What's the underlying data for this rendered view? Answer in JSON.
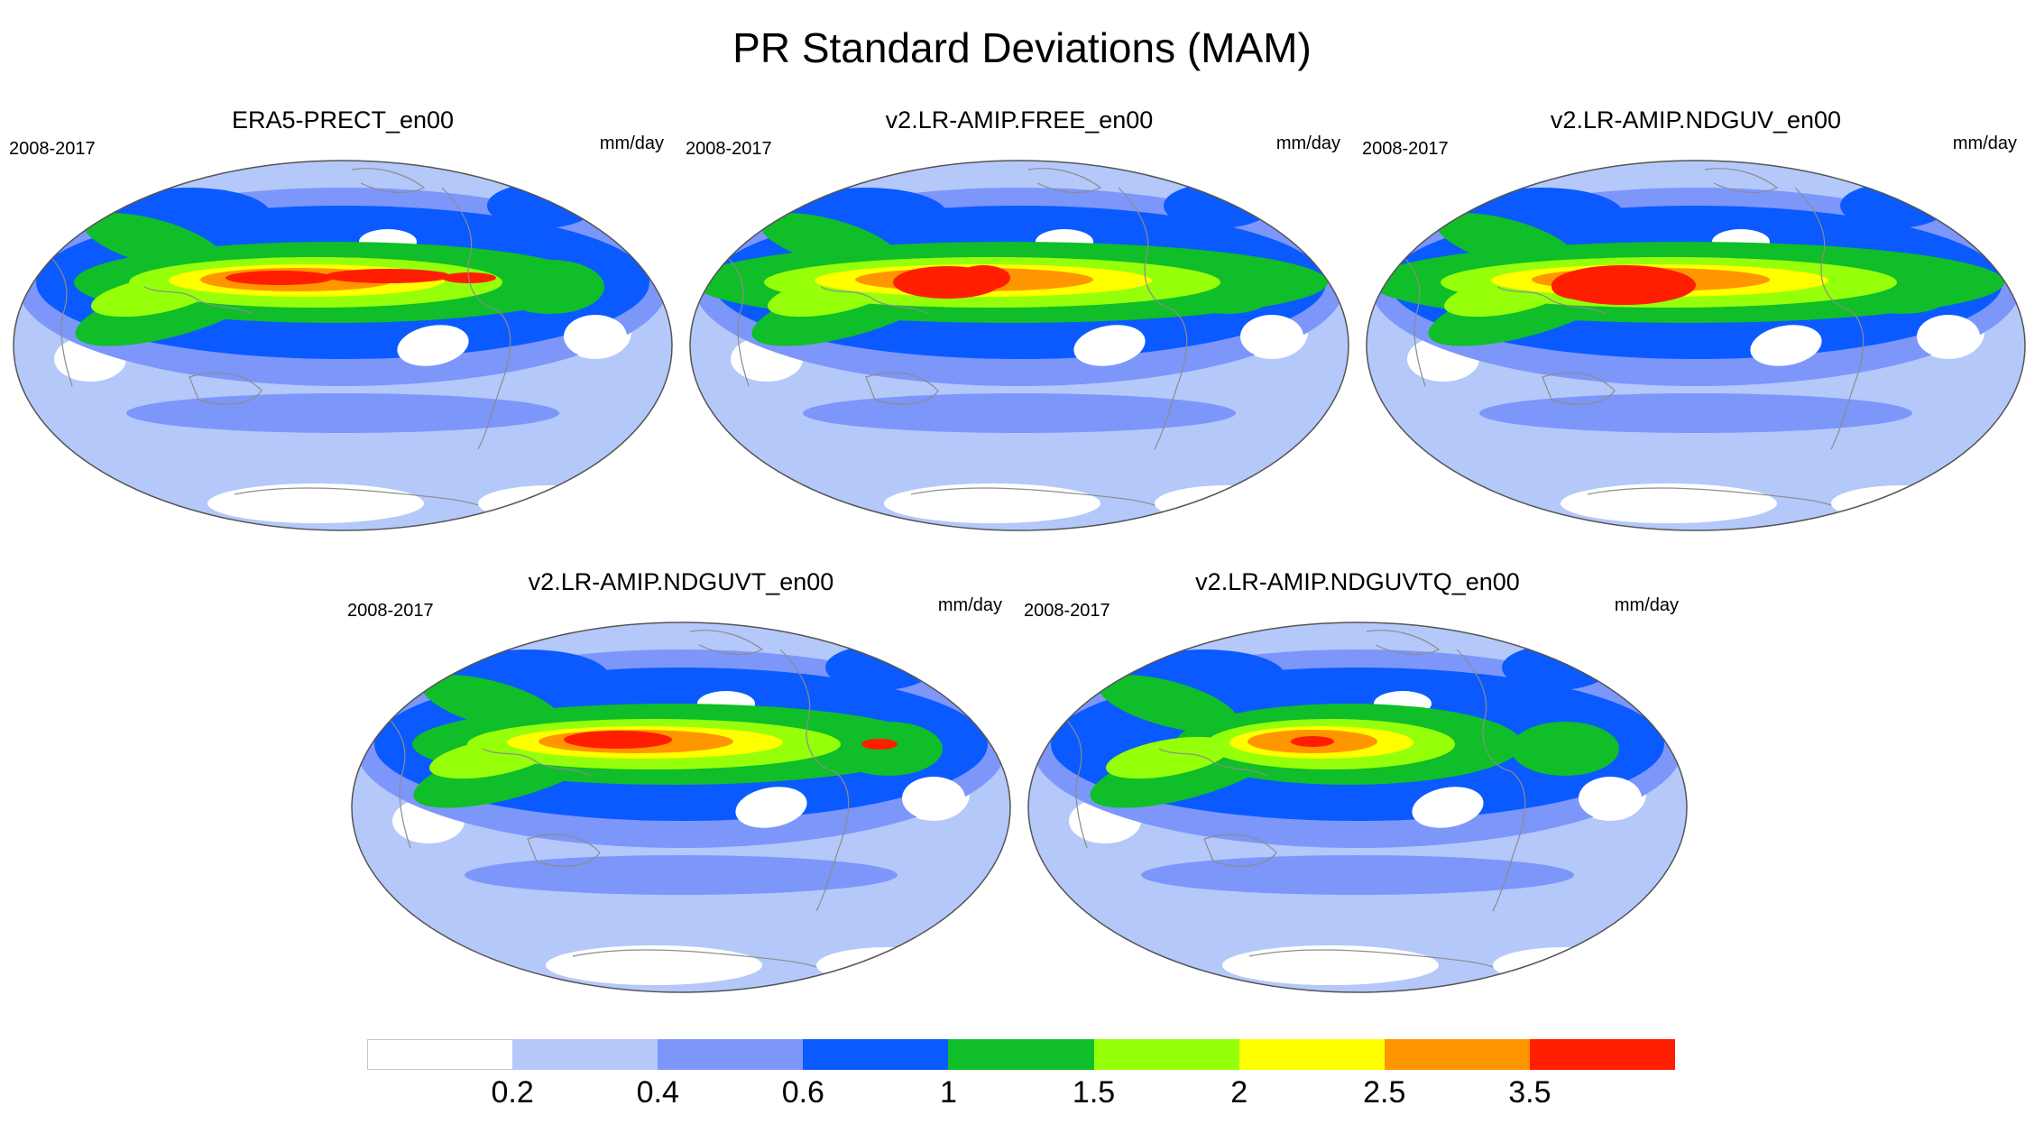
{
  "title": "PR Standard Deviations (MAM)",
  "panels": [
    {
      "title": "ERA5-PRECT_en00",
      "years": "2008-2017",
      "units": "mm/day"
    },
    {
      "title": "v2.LR-AMIP.FREE_en00",
      "years": "2008-2017",
      "units": "mm/day"
    },
    {
      "title": "v2.LR-AMIP.NDGUV_en00",
      "years": "2008-2017",
      "units": "mm/day"
    },
    {
      "title": "v2.LR-AMIP.NDGUVT_en00",
      "years": "2008-2017",
      "units": "mm/day"
    },
    {
      "title": "v2.LR-AMIP.NDGUVTQ_en00",
      "years": "2008-2017",
      "units": "mm/day"
    }
  ],
  "colorbar": {
    "levels": [
      "0.2",
      "0.4",
      "0.6",
      "1",
      "1.5",
      "2",
      "2.5",
      "3.5"
    ],
    "colors": [
      "#ffffff",
      "#b4c8fa",
      "#7d96fa",
      "#0a5aff",
      "#0fbe28",
      "#96ff0a",
      "#ffff00",
      "#ff9600",
      "#ff1e00"
    ]
  },
  "colors": {
    "ocean_low": "#b4c8fa",
    "mid": "#7d96fa",
    "blue": "#0a5aff",
    "green": "#0fbe28",
    "lime": "#96ff0a",
    "yellow": "#ffff00",
    "orange": "#ff9600",
    "red": "#ff1e00",
    "coast": "#8c8c8c"
  }
}
